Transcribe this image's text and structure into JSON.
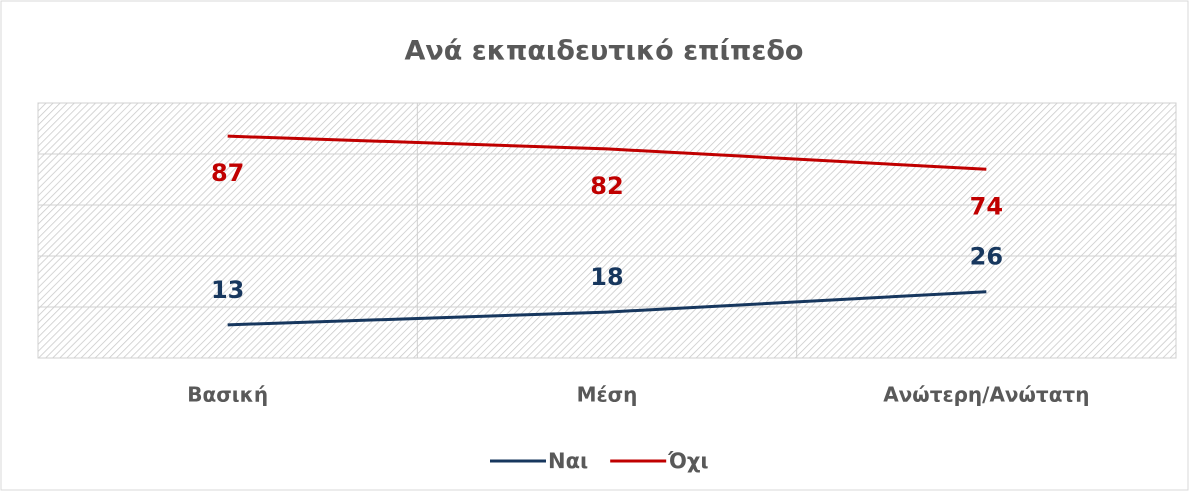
{
  "chart_data": {
    "type": "line",
    "title": "Ανά εκπαιδευτικό επίπεδο",
    "categories": [
      "Βασική",
      "Μέση",
      "Ανώτερη/Ανώτατη"
    ],
    "series": [
      {
        "name": "Ναι",
        "color": "#17375e",
        "values": [
          13,
          18,
          26
        ]
      },
      {
        "name": "Όχι",
        "color": "#c00000",
        "values": [
          87,
          82,
          74
        ]
      }
    ],
    "ylim": [
      0,
      100
    ],
    "yticks": [
      0,
      20,
      40,
      60,
      80,
      100
    ],
    "grid": true,
    "legend": "bottom"
  }
}
